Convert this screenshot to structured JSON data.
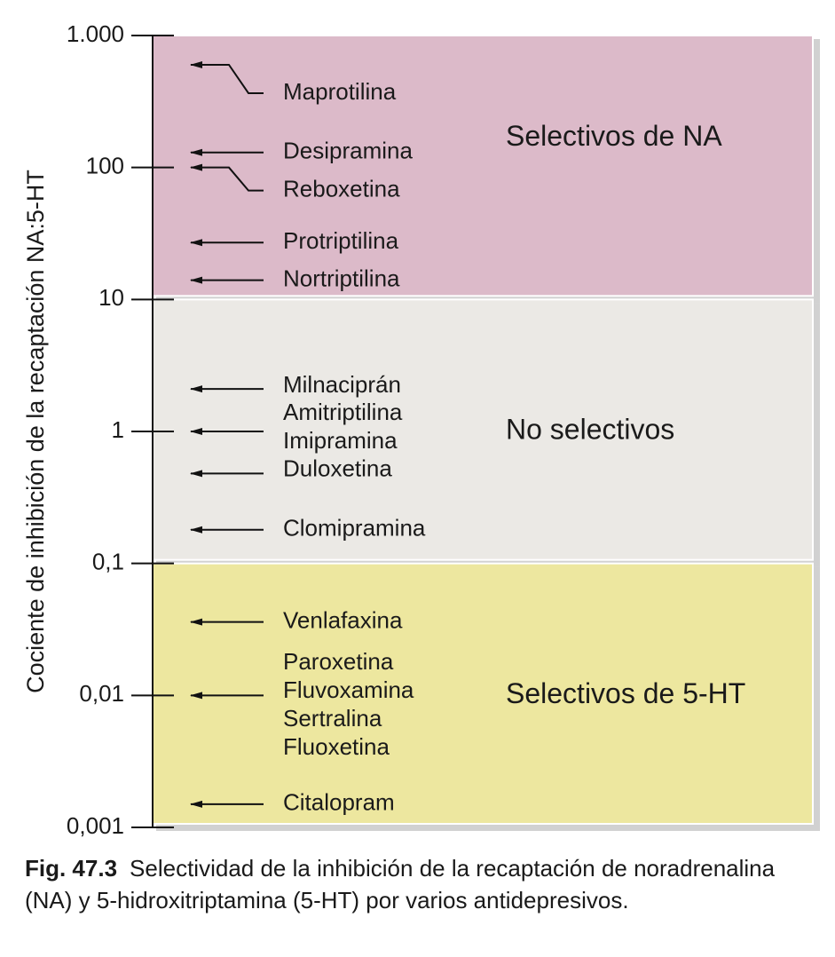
{
  "chart_data": {
    "type": "log-scale-annotation",
    "y_label": "Cociente de inhibición de la recaptación NA:5-HT",
    "log_scale": true,
    "ylim": [
      0.001,
      1000
    ],
    "yticks": [
      {
        "value": 1000,
        "label": "1.000"
      },
      100,
      10,
      1,
      {
        "value": 0.1,
        "label": "0,1"
      },
      {
        "value": 0.01,
        "label": "0,01"
      },
      {
        "value": 0.001,
        "label": "0,001"
      }
    ],
    "bands": [
      {
        "name": "Selectivos de NA",
        "color": "#dcbac9",
        "range": [
          10,
          1000
        ]
      },
      {
        "name": "No selectivos",
        "color": "#ebe9e5",
        "range": [
          0.1,
          10
        ]
      },
      {
        "name": "Selectivos de 5-HT",
        "color": "#ede79f",
        "range": [
          0.001,
          0.1
        ]
      }
    ],
    "drugs": [
      {
        "labels": [
          "Maprotilina"
        ],
        "value": 600
      },
      {
        "labels": [
          "Desipramina"
        ],
        "value": 130
      },
      {
        "labels": [
          "Reboxetina"
        ],
        "value": 100
      },
      {
        "labels": [
          "Protriptilina"
        ],
        "value": 27
      },
      {
        "labels": [
          "Nortriptilina"
        ],
        "value": 14
      },
      {
        "labels": [
          "Milnaciprán"
        ],
        "value": 2.1
      },
      {
        "labels": [
          "Amitriptilina",
          "Imipramina"
        ],
        "value": 1
      },
      {
        "labels": [
          "Duloxetina"
        ],
        "value": 0.48
      },
      {
        "labels": [
          "Clomipramina"
        ],
        "value": 0.18
      },
      {
        "labels": [
          "Venlafaxina"
        ],
        "value": 0.036
      },
      {
        "labels": [
          "Paroxetina",
          "Fluvoxamina",
          "Sertralina",
          "Fluoxetina"
        ],
        "value": 0.01
      },
      {
        "labels": [
          "Citalopram"
        ],
        "value": 0.0015
      }
    ]
  },
  "caption": {
    "label": "Fig. 47.3",
    "text": "Selectividad de la inhibición de la recaptación de noradrenalina (NA) y 5-hidroxitriptamina (5-HT) por varios antidepresivos."
  }
}
